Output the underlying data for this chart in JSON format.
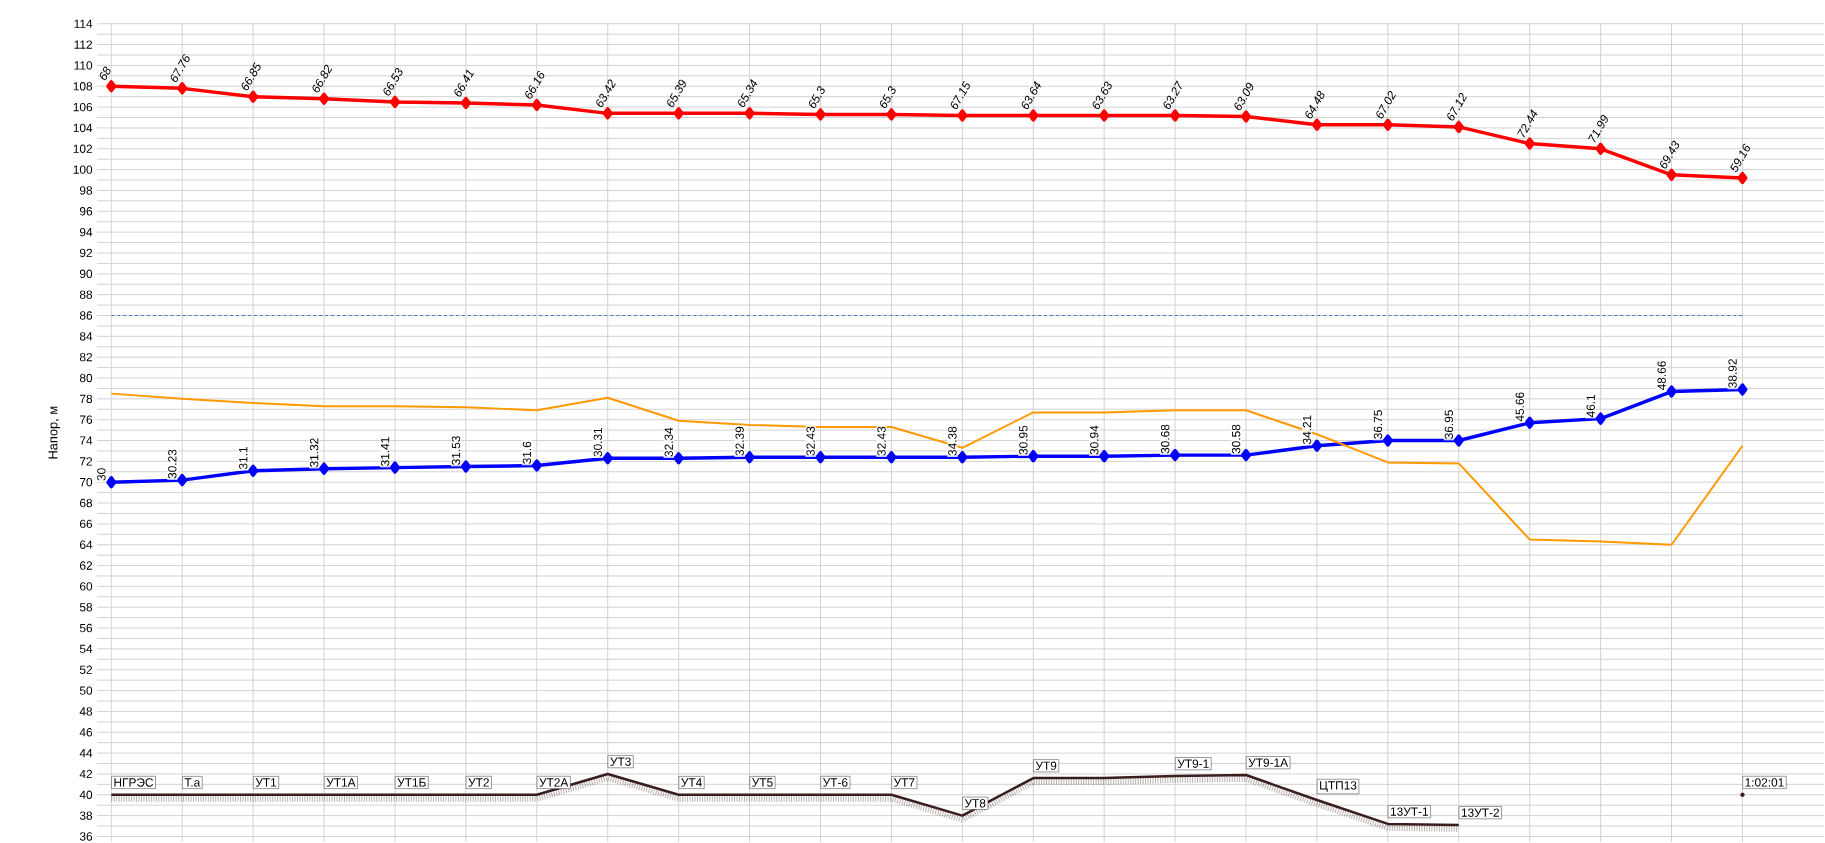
{
  "chart_data": {
    "type": "line",
    "ylabel": "Напор, м",
    "categories": [
      "НГРЭС",
      "Т.а",
      "УТ1",
      "УТ1А",
      "УТ1Б",
      "УТ2",
      "УТ2А",
      "УТ3",
      "УТ4",
      "УТ5",
      "УТ-6",
      "УТ7",
      "УТ8",
      "УТ9",
      null,
      "УТ9-1",
      "УТ9-1А",
      "ЦТП13",
      "13УТ-1",
      "13УТ-2",
      null,
      null,
      null,
      "1:02:01"
    ],
    "series": [
      {
        "color": "#ff0000",
        "marker": "diamond",
        "values": [
          108.0,
          107.8,
          107.0,
          106.8,
          106.5,
          106.4,
          106.2,
          105.4,
          105.4,
          105.4,
          105.3,
          105.3,
          105.2,
          105.2,
          105.2,
          105.2,
          105.1,
          104.3,
          104.3,
          104.1,
          102.5,
          102.0,
          99.5,
          99.2
        ]
      },
      {
        "color": "#0000ff",
        "marker": "diamond",
        "values": [
          70.0,
          70.2,
          71.1,
          71.3,
          71.4,
          71.5,
          71.6,
          72.3,
          72.3,
          72.4,
          72.4,
          72.4,
          72.4,
          72.5,
          72.5,
          72.6,
          72.6,
          73.5,
          74.0,
          74.0,
          75.7,
          76.1,
          78.7,
          78.9
        ]
      },
      {
        "color": "#ff9900",
        "marker": "none",
        "values": [
          78.5,
          78.0,
          77.6,
          77.3,
          77.3,
          77.2,
          76.9,
          78.1,
          75.9,
          75.5,
          75.3,
          75.3,
          73.3,
          76.7,
          76.7,
          76.9,
          76.9,
          74.6,
          71.9,
          71.8,
          64.5,
          64.3,
          64.0,
          73.5
        ]
      },
      {
        "color": "#3a1e1e",
        "marker": "none",
        "values": [
          40,
          40,
          40,
          40,
          40,
          40,
          40,
          42,
          40,
          40,
          40,
          40,
          38,
          41.6,
          41.6,
          41.8,
          41.9,
          39.5,
          37.2,
          37.1,
          null,
          null,
          null,
          40
        ]
      }
    ],
    "annotations": [
      {
        "text": "68",
        "x": "НГРЭС",
        "y": 108.0
      },
      {
        "text": "67.76",
        "x": "Т.а",
        "y": 107.8
      },
      {
        "text": "66.85",
        "x": "УТ1",
        "y": 107.0
      },
      {
        "text": "66.82",
        "x": "УТ1А",
        "y": 106.8
      },
      {
        "text": "66.53",
        "x": "УТ1Б",
        "y": 106.5
      },
      {
        "text": "66.41",
        "x": "УТ2",
        "y": 106.4
      },
      {
        "text": "66.16",
        "x": "УТ2А",
        "y": 106.2
      },
      {
        "text": "63.42",
        "x": "УТ3",
        "y": 105.4
      },
      {
        "text": "65.39",
        "x": "УТ4",
        "y": 105.4
      },
      {
        "text": "65.34",
        "x": "УТ5",
        "y": 105.4
      },
      {
        "text": "65.3",
        "x": "УТ-6",
        "y": 105.3
      },
      {
        "text": "65.3",
        "x": "УТ7",
        "y": 105.3
      },
      {
        "text": "67.15",
        "x": "УТ8",
        "y": 105.2
      },
      {
        "text": "63.64",
        "x": "УТ9",
        "y": 105.2
      },
      {
        "text": "63.63",
        "y": 105.2
      },
      {
        "text": "63.27",
        "x": "УТ9-1",
        "y": 105.2
      },
      {
        "text": "63.09",
        "x": "УТ9-1А",
        "y": 105.1
      },
      {
        "text": "64.48",
        "x": "ЦТП13",
        "y": 104.3
      },
      {
        "text": "67.02",
        "x": "13УТ-1",
        "y": 104.3
      },
      {
        "text": "67.12",
        "x": "13УТ-2",
        "y": 104.1
      },
      {
        "text": "72.44",
        "y": 102.5
      },
      {
        "text": "71.99",
        "y": 102.0
      },
      {
        "text": "69.43",
        "y": 99.5
      },
      {
        "text": "59.16",
        "y": 99.2
      },
      {
        "text": "30",
        "x": "НГРЭС",
        "y": 70.0
      },
      {
        "text": "30.23",
        "x": "Т.а",
        "y": 70.2
      },
      {
        "text": "31.1",
        "x": "УТ1",
        "y": 71.1
      },
      {
        "text": "31.32",
        "x": "УТ1А",
        "y": 71.3
      },
      {
        "text": "31.41",
        "x": "УТ1Б",
        "y": 71.4
      },
      {
        "text": "31.53",
        "x": "УТ2",
        "y": 71.5
      },
      {
        "text": "31.6",
        "x": "УТ2А",
        "y": 71.6
      },
      {
        "text": "30.31",
        "x": "УТ3",
        "y": 72.3
      },
      {
        "text": "32.34",
        "x": "УТ4",
        "y": 72.3
      },
      {
        "text": "32.39",
        "x": "УТ5",
        "y": 72.4
      },
      {
        "text": "32.43",
        "x": "УТ-6",
        "y": 72.4
      },
      {
        "text": "32.43",
        "x": "УТ7",
        "y": 72.4
      },
      {
        "text": "34.38",
        "x": "УТ8",
        "y": 72.4
      },
      {
        "text": "30.95",
        "x": "УТ9",
        "y": 72.5
      },
      {
        "text": "30.94",
        "y": 72.5
      },
      {
        "text": "30.68",
        "x": "УТ9-1",
        "y": 72.6
      },
      {
        "text": "30.58",
        "x": "УТ9-1А",
        "y": 72.6
      },
      {
        "text": "34.21",
        "x": "ЦТП13",
        "y": 73.5
      },
      {
        "text": "36.75",
        "x": "13УТ-1",
        "y": 74.0
      },
      {
        "text": "36.95",
        "x": "13УТ-2",
        "y": 74.0
      },
      {
        "text": "45.66",
        "y": 75.7
      },
      {
        "text": "46.1",
        "y": 76.1
      },
      {
        "text": "48.66",
        "y": 78.7
      },
      {
        "text": "38.92",
        "y": 78.9
      }
    ],
    "ylim": [
      35.5,
      114
    ],
    "yticks": [
      36,
      38,
      40,
      42,
      44,
      46,
      48,
      50,
      52,
      54,
      56,
      58,
      60,
      62,
      64,
      66,
      68,
      70,
      72,
      74,
      76,
      78,
      80,
      82,
      84,
      86,
      88,
      90,
      92,
      94,
      96,
      98,
      100,
      102,
      104,
      106,
      108,
      110,
      112,
      114
    ],
    "ref_lines": [
      {
        "axis": "y",
        "value": 86,
        "color": "#3c7cc4",
        "line_style": "dashed"
      }
    ],
    "grid": true,
    "tick_labels": "y"
  }
}
